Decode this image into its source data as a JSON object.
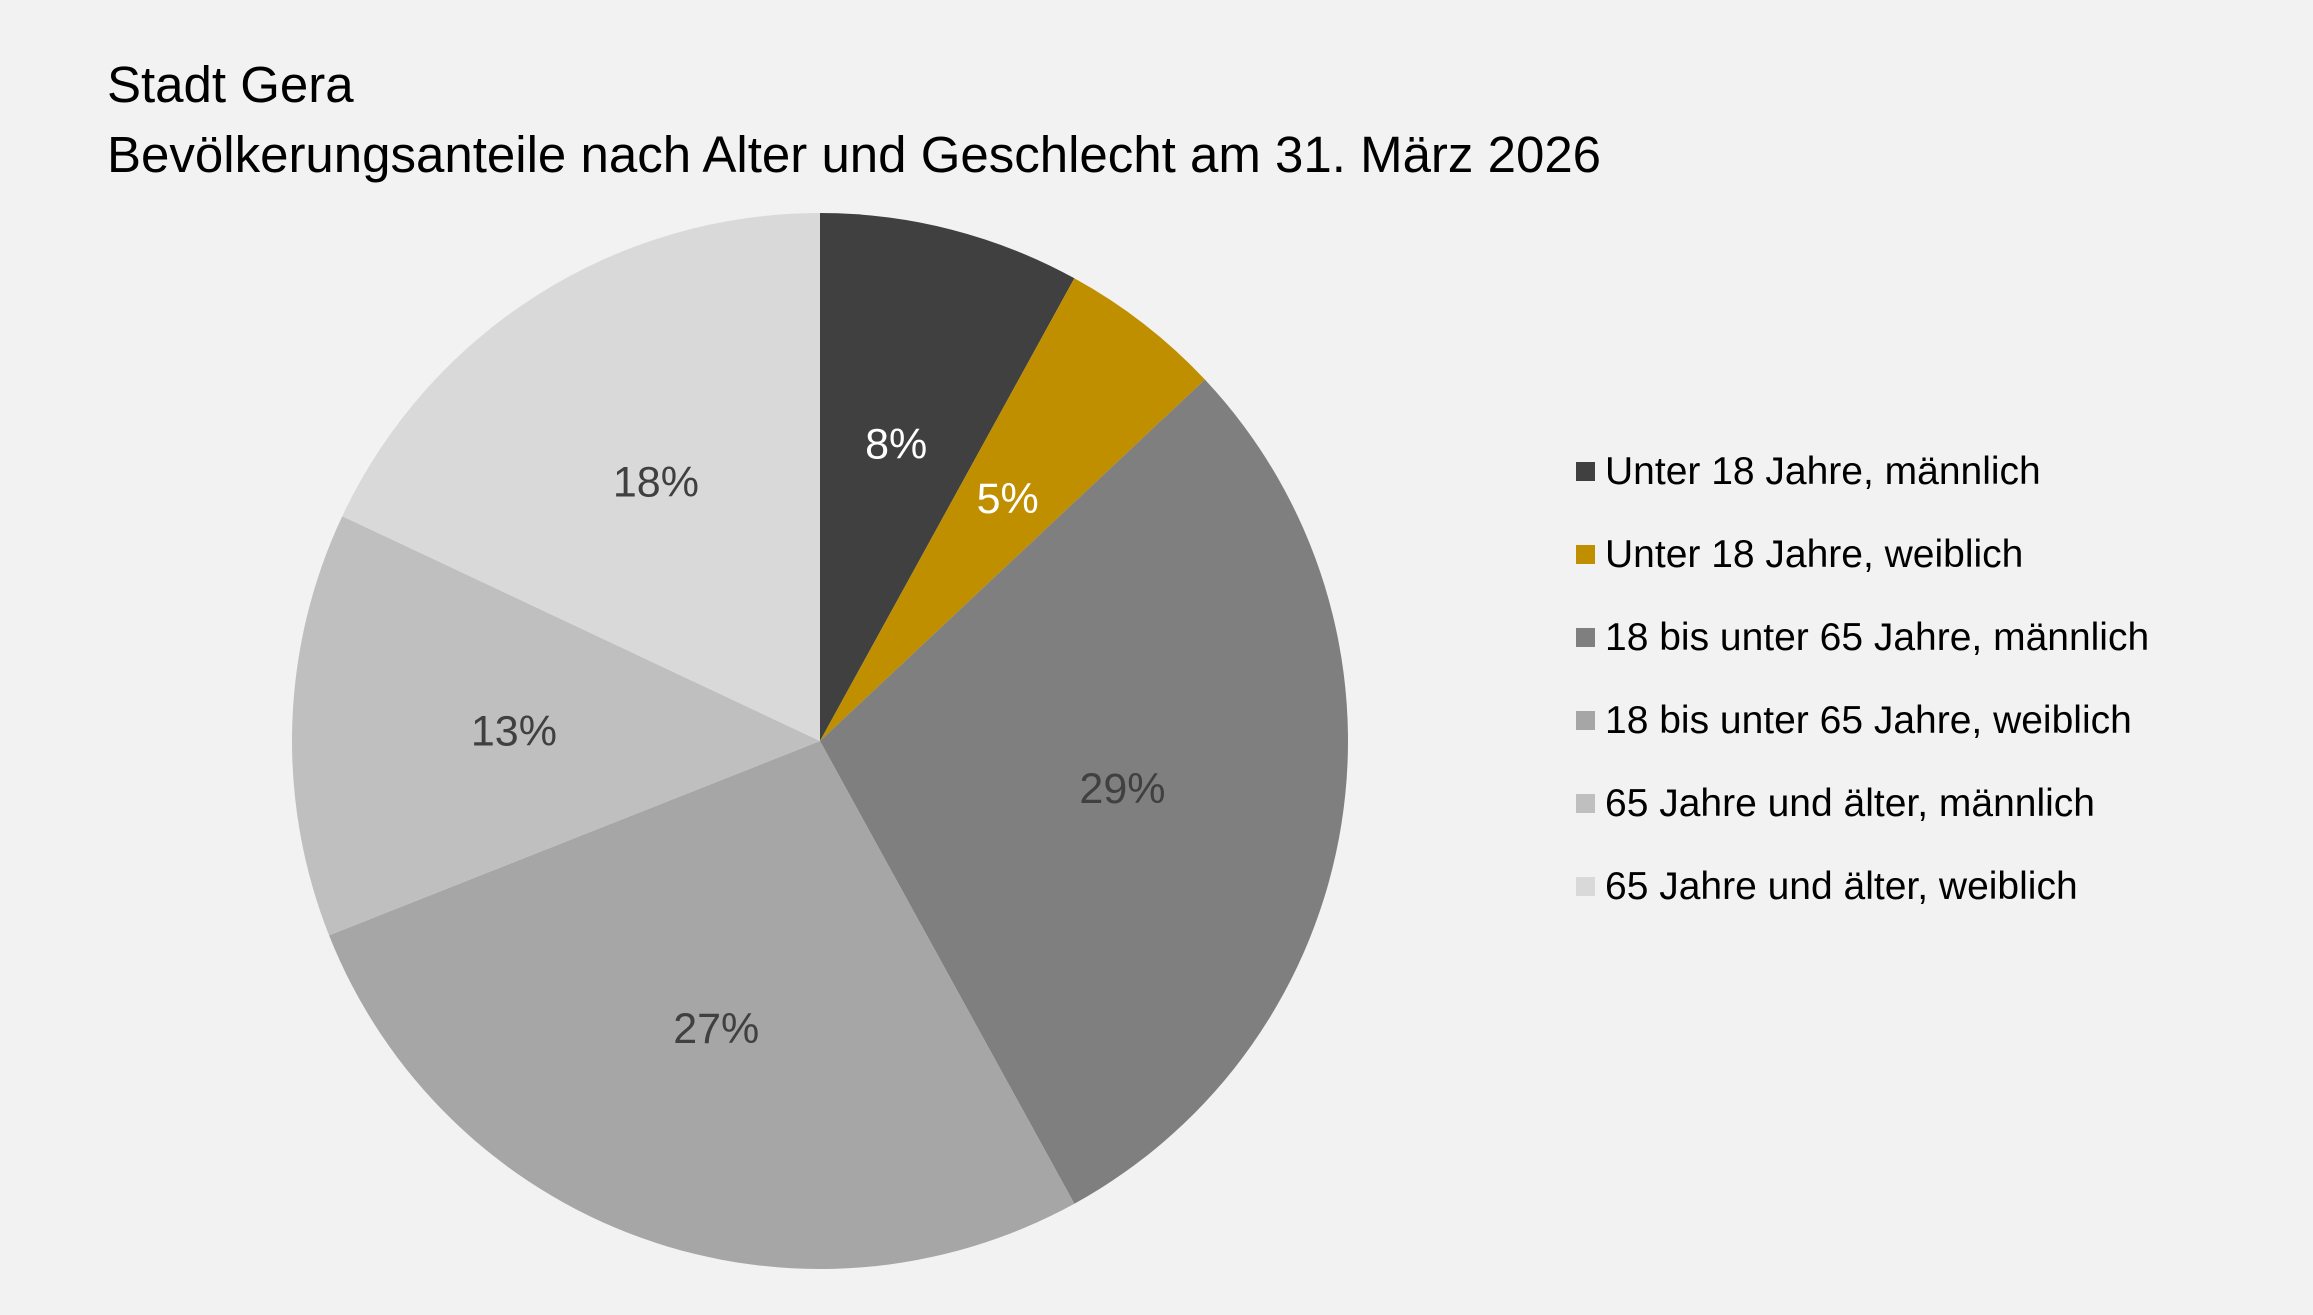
{
  "chart_data": {
    "type": "pie",
    "title": "Stadt Gera",
    "subtitle": "Bevölkerungsanteile nach Alter und Geschlecht am 31. März 2026",
    "legend_position": "right",
    "slices": [
      {
        "name": "Unter 18 Jahre, männlich",
        "value": 8,
        "label": "8%",
        "color": "#404040",
        "label_color": "#ffffff"
      },
      {
        "name": "Unter 18 Jahre, weiblich",
        "value": 5,
        "label": "5%",
        "color": "#bf8f00",
        "label_color": "#ffffff"
      },
      {
        "name": "18 bis unter 65 Jahre, männlich",
        "value": 29,
        "label": "29%",
        "color": "#7f7f7f",
        "label_color": "#404040"
      },
      {
        "name": "18 bis unter 65 Jahre, weiblich",
        "value": 27,
        "label": "27%",
        "color": "#a6a6a6",
        "label_color": "#404040"
      },
      {
        "name": "65 Jahre und älter, männlich",
        "value": 13,
        "label": "13%",
        "color": "#bfbfbf",
        "label_color": "#404040"
      },
      {
        "name": "65 Jahre und älter, weiblich",
        "value": 18,
        "label": "18%",
        "color": "#d9d9d9",
        "label_color": "#404040"
      }
    ]
  }
}
